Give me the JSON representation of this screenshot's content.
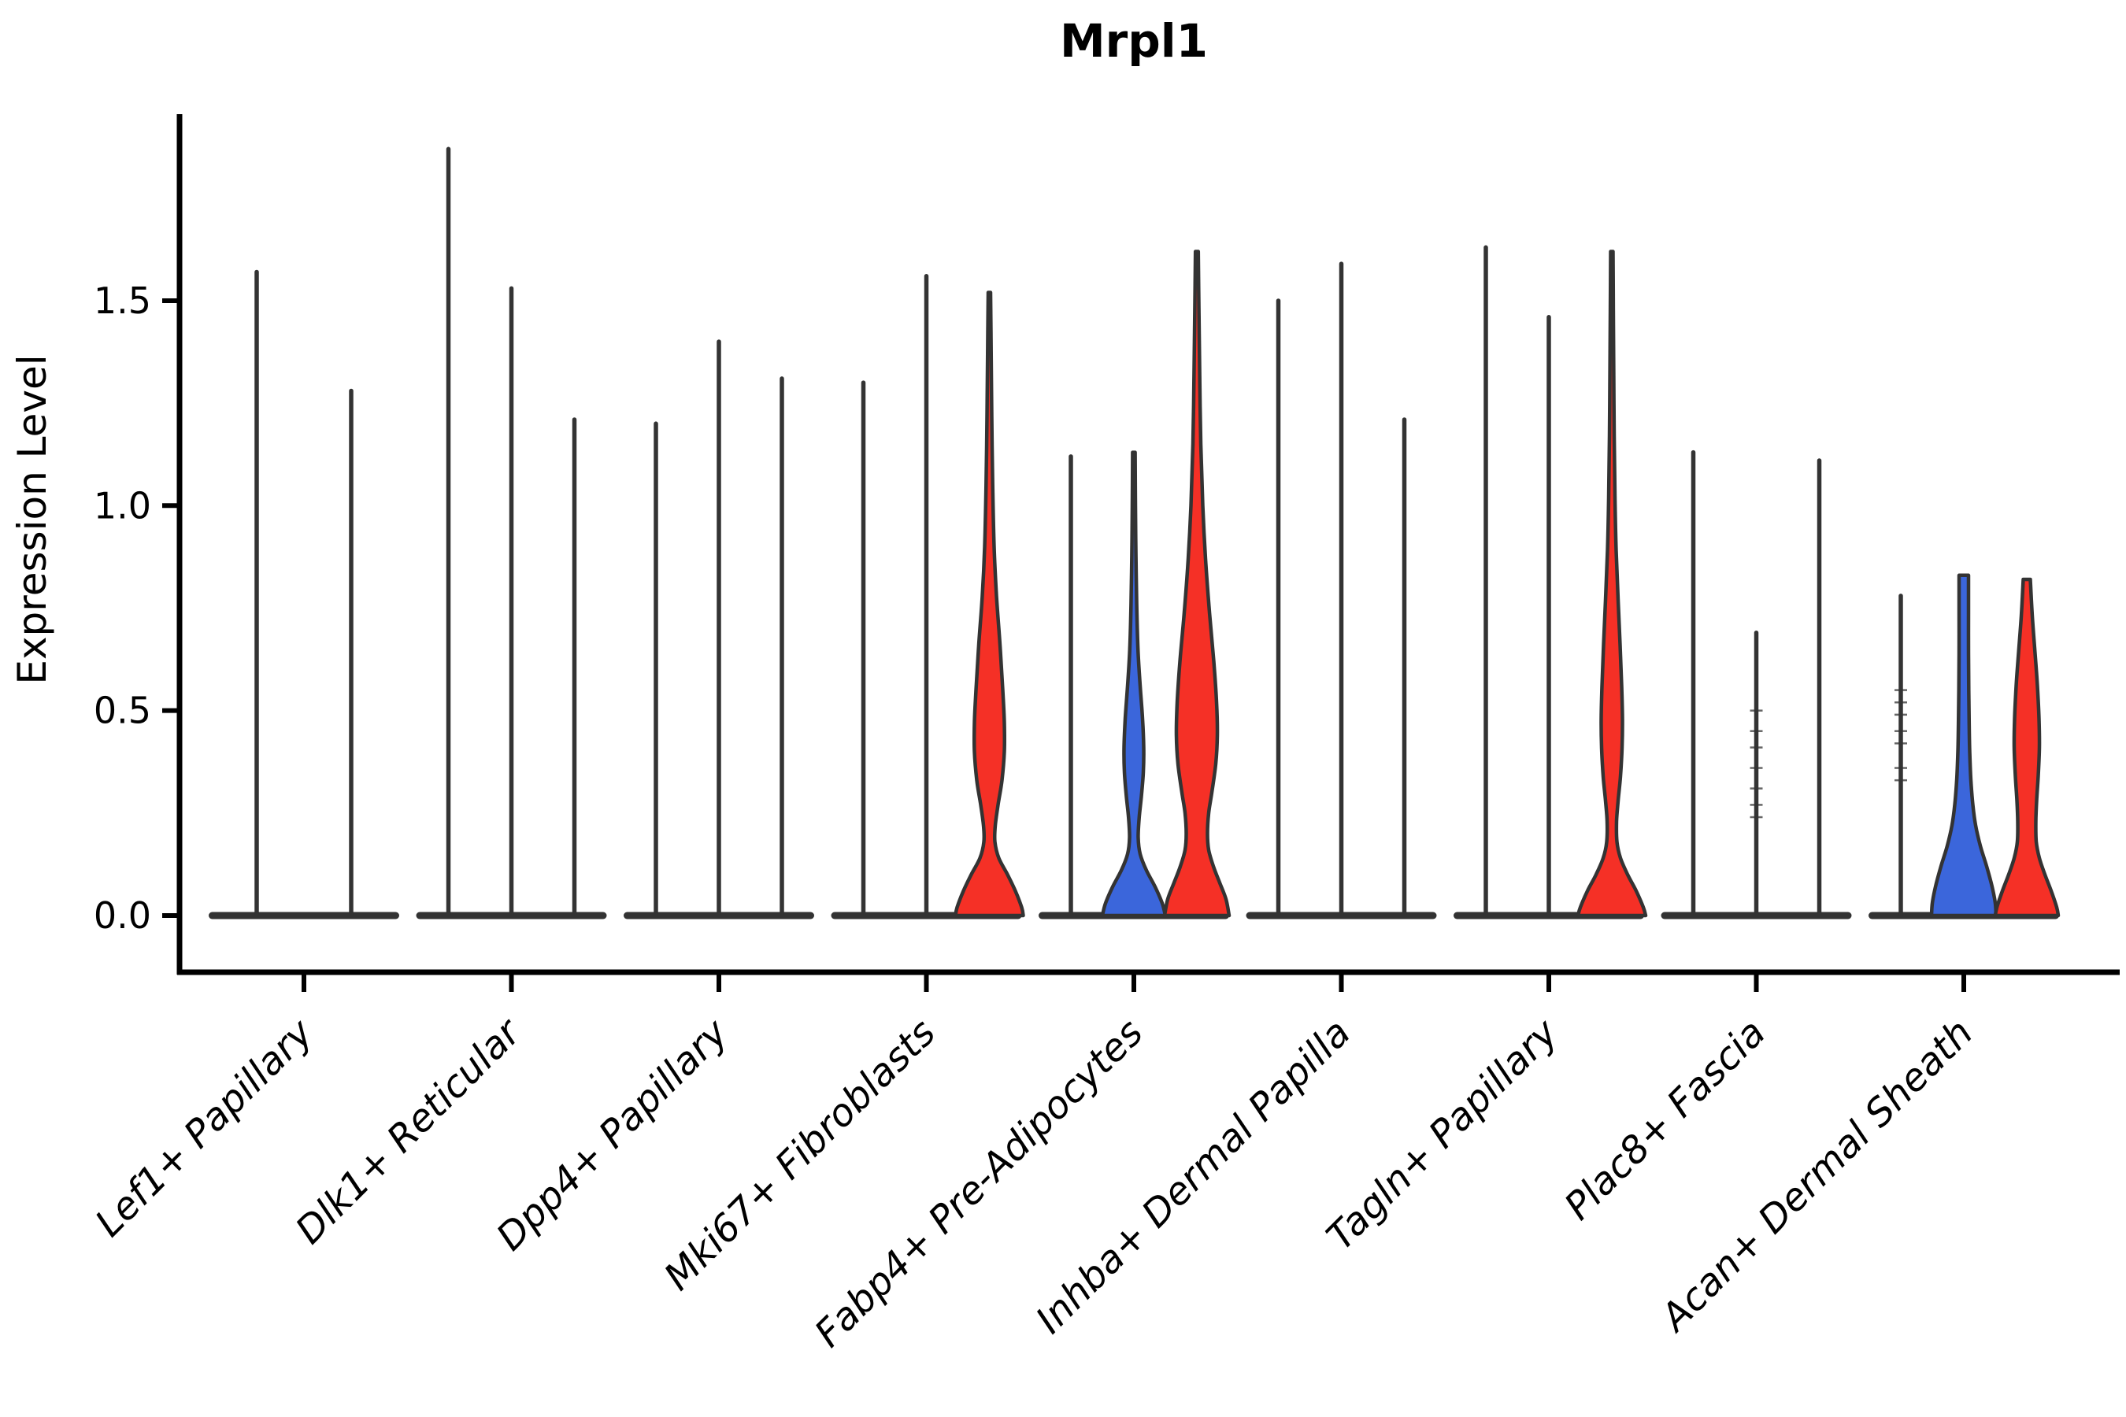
{
  "chart_data": {
    "type": "violin",
    "title": "Mrpl1",
    "xlabel": "",
    "ylabel": "Expression Level",
    "ylim": [
      0,
      1.96
    ],
    "yticks": [
      0,
      0.5,
      1.0,
      1.5
    ],
    "ytick_labels": [
      "0.0",
      "0.5",
      "1.0",
      "1.5"
    ],
    "grid": false,
    "legend": "none",
    "categories": [
      "Lef1+ Papillary",
      "Dlk1+ Reticular",
      "Dpp4+ Papillary",
      "Mki67+ Fibroblasts",
      "Fabp4+ Pre-Adipocytes",
      "Inhba+ Dermal Papilla",
      "Tagln+ Papillary",
      "Plac8+ Fascia",
      "Acan+ Dermal Sheath"
    ],
    "colors": {
      "default": "#333333",
      "red": "#F53026",
      "blue": "#3B66DB",
      "axis": "#000000"
    },
    "groups": [
      {
        "category": "Lef1+ Papillary",
        "violins": [
          {
            "offset": -60,
            "max": 1.57,
            "style": "spike",
            "color": "default"
          },
          {
            "offset": 60,
            "max": 1.28,
            "style": "spike",
            "color": "default"
          }
        ]
      },
      {
        "category": "Dlk1+ Reticular",
        "violins": [
          {
            "offset": -80,
            "max": 1.87,
            "style": "spike",
            "color": "default"
          },
          {
            "offset": 0,
            "max": 1.53,
            "style": "spike",
            "color": "default"
          },
          {
            "offset": 80,
            "max": 1.21,
            "style": "spike",
            "color": "default"
          }
        ]
      },
      {
        "category": "Dpp4+ Papillary",
        "violins": [
          {
            "offset": -80,
            "max": 1.2,
            "style": "spike",
            "color": "default"
          },
          {
            "offset": 0,
            "max": 1.4,
            "style": "spike",
            "color": "default"
          },
          {
            "offset": 80,
            "max": 1.31,
            "style": "spike",
            "color": "default"
          }
        ]
      },
      {
        "category": "Mki67+ Fibroblasts",
        "violins": [
          {
            "offset": -80,
            "max": 1.3,
            "style": "spike",
            "color": "default"
          },
          {
            "offset": 0,
            "max": 1.56,
            "style": "spike",
            "color": "default"
          },
          {
            "offset": 80,
            "max": 1.52,
            "style": "shaped",
            "color": "red",
            "flat_top": false,
            "profile": [
              [
                1.52,
                1.5
              ],
              [
                1.38,
                2.2
              ],
              [
                1.22,
                3
              ],
              [
                1.05,
                4.2
              ],
              [
                0.9,
                6
              ],
              [
                0.78,
                9
              ],
              [
                0.66,
                13.5
              ],
              [
                0.55,
                17
              ],
              [
                0.47,
                19
              ],
              [
                0.4,
                19
              ],
              [
                0.33,
                16
              ],
              [
                0.27,
                11
              ],
              [
                0.22,
                7.5
              ],
              [
                0.18,
                7
              ],
              [
                0.14,
                12
              ],
              [
                0.1,
                23
              ],
              [
                0.06,
                33
              ],
              [
                0.02,
                41
              ],
              [
                0,
                43
              ]
            ]
          }
        ]
      },
      {
        "category": "Fabp4+ Pre-Adipocytes",
        "violins": [
          {
            "offset": -80,
            "max": 1.12,
            "style": "spike",
            "color": "default"
          },
          {
            "offset": 0,
            "max": 1.13,
            "style": "shaped",
            "color": "blue",
            "flat_top": false,
            "profile": [
              [
                1.13,
                1.6
              ],
              [
                1.0,
                2
              ],
              [
                0.88,
                2.6
              ],
              [
                0.76,
                3.6
              ],
              [
                0.65,
                5.2
              ],
              [
                0.56,
                8
              ],
              [
                0.48,
                11
              ],
              [
                0.41,
                12.5
              ],
              [
                0.35,
                12
              ],
              [
                0.29,
                9.5
              ],
              [
                0.24,
                6.8
              ],
              [
                0.19,
                5.5
              ],
              [
                0.15,
                8
              ],
              [
                0.11,
                16
              ],
              [
                0.07,
                27
              ],
              [
                0.03,
                36
              ],
              [
                0,
                40
              ]
            ]
          },
          {
            "offset": 80,
            "max": 1.62,
            "style": "shaped",
            "color": "red",
            "flat_top": false,
            "profile": [
              [
                1.62,
                1.8
              ],
              [
                1.48,
                2.6
              ],
              [
                1.32,
                3.6
              ],
              [
                1.15,
                5
              ],
              [
                1.0,
                7.5
              ],
              [
                0.87,
                11
              ],
              [
                0.74,
                16
              ],
              [
                0.62,
                21.5
              ],
              [
                0.52,
                25
              ],
              [
                0.44,
                26
              ],
              [
                0.37,
                24
              ],
              [
                0.3,
                19
              ],
              [
                0.25,
                15
              ],
              [
                0.2,
                13.5
              ],
              [
                0.16,
                15
              ],
              [
                0.12,
                21
              ],
              [
                0.08,
                29
              ],
              [
                0.04,
                37
              ],
              [
                0,
                41
              ]
            ]
          }
        ]
      },
      {
        "category": "Inhba+ Dermal Papilla",
        "violins": [
          {
            "offset": -80,
            "max": 1.5,
            "style": "spike",
            "color": "default"
          },
          {
            "offset": 0,
            "max": 1.59,
            "style": "spike",
            "color": "default"
          },
          {
            "offset": 80,
            "max": 1.21,
            "style": "spike",
            "color": "default"
          }
        ]
      },
      {
        "category": "Tagln+ Papillary",
        "violins": [
          {
            "offset": -80,
            "max": 1.63,
            "style": "spike",
            "color": "default"
          },
          {
            "offset": 0,
            "max": 1.46,
            "style": "spike",
            "color": "default"
          },
          {
            "offset": 80,
            "max": 1.62,
            "style": "shaped",
            "color": "red",
            "flat_top": false,
            "profile": [
              [
                1.62,
                1.5
              ],
              [
                1.48,
                1.9
              ],
              [
                1.33,
                2.4
              ],
              [
                1.17,
                3
              ],
              [
                1.02,
                4
              ],
              [
                0.89,
                5.5
              ],
              [
                0.77,
                8
              ],
              [
                0.66,
                10.5
              ],
              [
                0.56,
                12.5
              ],
              [
                0.48,
                13.5
              ],
              [
                0.41,
                13
              ],
              [
                0.34,
                11
              ],
              [
                0.28,
                8
              ],
              [
                0.23,
                6
              ],
              [
                0.18,
                6.5
              ],
              [
                0.14,
                11
              ],
              [
                0.1,
                20
              ],
              [
                0.06,
                31
              ],
              [
                0.02,
                40
              ],
              [
                0,
                43
              ]
            ]
          }
        ]
      },
      {
        "category": "Plac8+ Fascia",
        "violins": [
          {
            "offset": -80,
            "max": 1.13,
            "style": "spike",
            "color": "default"
          },
          {
            "offset": 0,
            "max": 0.69,
            "style": "spike",
            "color": "default",
            "marks": [
              0.5,
              0.45,
              0.41,
              0.36,
              0.31,
              0.27,
              0.24
            ]
          },
          {
            "offset": 80,
            "max": 1.11,
            "style": "spike",
            "color": "default"
          }
        ]
      },
      {
        "category": "Acan+ Dermal Sheath",
        "violins": [
          {
            "offset": -80,
            "max": 0.78,
            "style": "spike",
            "color": "default",
            "marks": [
              0.55,
              0.52,
              0.49,
              0.45,
              0.42,
              0.36,
              0.33
            ]
          },
          {
            "offset": 0,
            "max": 0.83,
            "style": "shaped",
            "color": "blue",
            "flat_top": true,
            "profile": [
              [
                0.83,
                6
              ],
              [
                0.74,
                6
              ],
              [
                0.64,
                6
              ],
              [
                0.55,
                6.3
              ],
              [
                0.47,
                6.8
              ],
              [
                0.4,
                7.5
              ],
              [
                0.33,
                9
              ],
              [
                0.27,
                11.5
              ],
              [
                0.22,
                15
              ],
              [
                0.17,
                21
              ],
              [
                0.12,
                29
              ],
              [
                0.07,
                36
              ],
              [
                0.03,
                40
              ],
              [
                0,
                41
              ]
            ]
          },
          {
            "offset": 80,
            "max": 0.82,
            "style": "shaped",
            "color": "red",
            "flat_top": true,
            "profile": [
              [
                0.82,
                4.5
              ],
              [
                0.73,
                7
              ],
              [
                0.64,
                10.5
              ],
              [
                0.56,
                13.5
              ],
              [
                0.48,
                15.5
              ],
              [
                0.41,
                16
              ],
              [
                0.34,
                14.5
              ],
              [
                0.28,
                12.5
              ],
              [
                0.23,
                11.5
              ],
              [
                0.18,
                12
              ],
              [
                0.14,
                16
              ],
              [
                0.1,
                23
              ],
              [
                0.06,
                31
              ],
              [
                0.02,
                38
              ],
              [
                0,
                40
              ]
            ]
          }
        ]
      }
    ]
  }
}
